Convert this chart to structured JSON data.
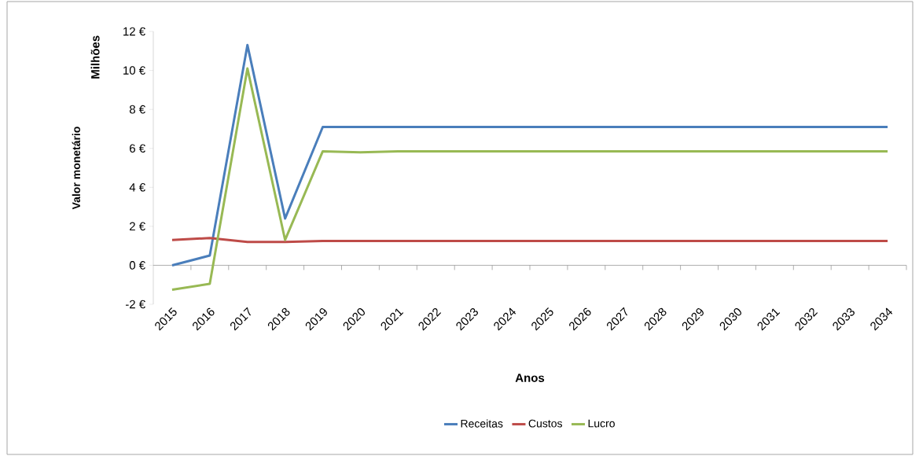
{
  "chart_data": {
    "type": "line",
    "xlabel": "Anos",
    "ylabel": "Valor monetário",
    "annotations": [
      "Milhões"
    ],
    "categories": [
      "2015",
      "2016",
      "2017",
      "2018",
      "2019",
      "2020",
      "2021",
      "2022",
      "2023",
      "2024",
      "2025",
      "2026",
      "2027",
      "2028",
      "2029",
      "2030",
      "2031",
      "2032",
      "2033",
      "2034"
    ],
    "ylim": [
      -2,
      12
    ],
    "yticks": [
      {
        "value": -2,
        "label": "-2 €"
      },
      {
        "value": 0,
        "label": "0 €"
      },
      {
        "value": 2,
        "label": "2 €"
      },
      {
        "value": 4,
        "label": "4 €"
      },
      {
        "value": 6,
        "label": "6 €"
      },
      {
        "value": 8,
        "label": "8 €"
      },
      {
        "value": 10,
        "label": "10 €"
      },
      {
        "value": 12,
        "label": "12 €"
      }
    ],
    "legend": "bottom",
    "marker": "none",
    "line_style": "solid",
    "series": [
      {
        "name": "Receitas",
        "color": "#4a7ebb",
        "values": [
          0,
          0.5,
          11.3,
          2.4,
          7.1,
          7.1,
          7.1,
          7.1,
          7.1,
          7.1,
          7.1,
          7.1,
          7.1,
          7.1,
          7.1,
          7.1,
          7.1,
          7.1,
          7.1,
          7.1
        ]
      },
      {
        "name": "Custos",
        "color": "#be4b48",
        "values": [
          1.3,
          1.4,
          1.2,
          1.2,
          1.25,
          1.25,
          1.25,
          1.25,
          1.25,
          1.25,
          1.25,
          1.25,
          1.25,
          1.25,
          1.25,
          1.25,
          1.25,
          1.25,
          1.25,
          1.25
        ]
      },
      {
        "name": "Lucro",
        "color": "#98b954",
        "values": [
          -1.25,
          -0.95,
          10.1,
          1.3,
          5.85,
          5.8,
          5.85,
          5.85,
          5.85,
          5.85,
          5.85,
          5.85,
          5.85,
          5.85,
          5.85,
          5.85,
          5.85,
          5.85,
          5.85,
          5.85
        ]
      }
    ]
  }
}
